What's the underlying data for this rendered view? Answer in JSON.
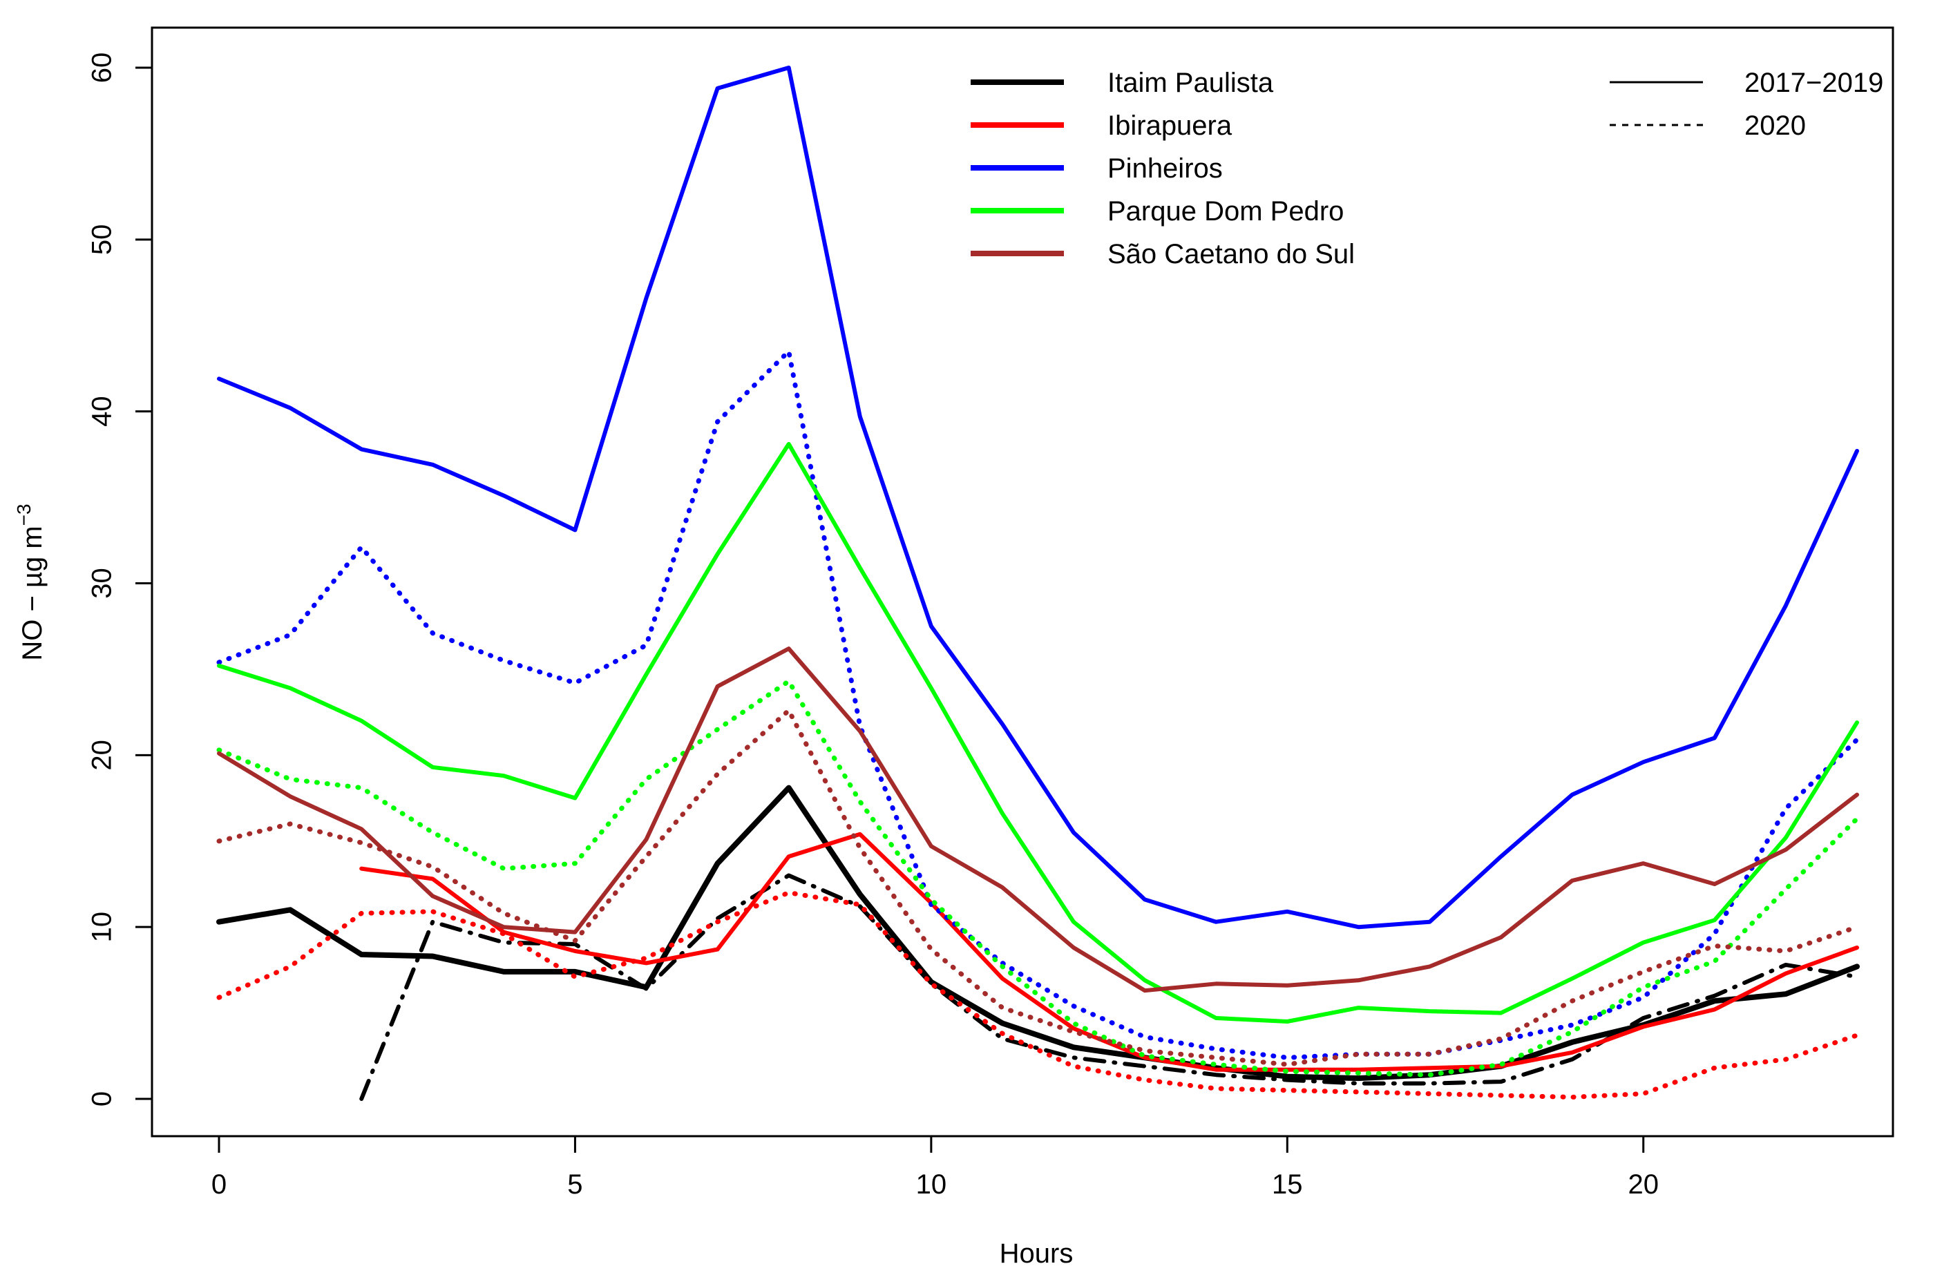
{
  "chart_data": {
    "type": "line",
    "title": "",
    "xlabel": "Hours",
    "ylabel": "NO − µg m",
    "ylabel_superscript": "−3",
    "xlim": [
      0,
      23
    ],
    "ylim": [
      0,
      60
    ],
    "x_ticks": [
      0,
      5,
      10,
      15,
      20
    ],
    "y_ticks": [
      0,
      10,
      20,
      30,
      40,
      50,
      60
    ],
    "grid": false,
    "legend_placement": "top",
    "period_legend": [
      {
        "label": "2017−2019",
        "style": "solid"
      },
      {
        "label": "2020",
        "style": "dotted"
      }
    ],
    "x": [
      0,
      1,
      2,
      3,
      4,
      5,
      6,
      7,
      8,
      9,
      10,
      11,
      12,
      13,
      14,
      15,
      16,
      17,
      18,
      19,
      20,
      21,
      22,
      23
    ],
    "series": [
      {
        "name": "Itaim Paulista",
        "period": "2017−2019",
        "color": "#000000",
        "values": [
          10.3,
          11.0,
          8.4,
          8.3,
          7.4,
          7.4,
          6.5,
          13.7,
          18.1,
          11.9,
          6.8,
          4.4,
          3.0,
          2.4,
          1.8,
          1.3,
          1.2,
          1.4,
          1.9,
          3.3,
          4.3,
          5.7,
          6.1,
          7.7
        ]
      },
      {
        "name": "Itaim Paulista",
        "period": "2020",
        "color": "#000000",
        "values": [
          null,
          null,
          0.0,
          10.3,
          9.1,
          9.0,
          6.4,
          10.5,
          13.0,
          11.2,
          6.7,
          3.5,
          2.4,
          1.9,
          1.4,
          1.1,
          0.9,
          0.9,
          1.0,
          2.3,
          4.7,
          6.0,
          7.8,
          7.1
        ]
      },
      {
        "name": "Ibirapuera",
        "period": "2017−2019",
        "color": "#ff0000",
        "values": [
          null,
          null,
          13.4,
          12.8,
          9.7,
          8.6,
          7.9,
          8.7,
          14.1,
          15.4,
          11.4,
          7.0,
          4.1,
          2.4,
          1.7,
          1.7,
          1.7,
          1.8,
          1.9,
          2.7,
          4.2,
          5.2,
          7.3,
          8.8
        ]
      },
      {
        "name": "Ibirapuera",
        "period": "2020",
        "color": "#ff0000",
        "values": [
          5.9,
          7.7,
          10.8,
          10.9,
          9.6,
          7.1,
          8.2,
          10.3,
          12.0,
          11.3,
          6.7,
          3.8,
          1.9,
          1.1,
          0.6,
          0.5,
          0.4,
          0.3,
          0.2,
          0.1,
          0.3,
          1.8,
          2.3,
          3.7
        ]
      },
      {
        "name": "Pinheiros",
        "period": "2017−2019",
        "color": "#0000ff",
        "values": [
          41.9,
          40.2,
          37.8,
          36.9,
          35.1,
          33.1,
          46.6,
          58.8,
          60.0,
          39.7,
          27.5,
          21.8,
          15.5,
          11.6,
          10.3,
          10.9,
          10.0,
          10.3,
          14.1,
          17.7,
          19.6,
          21.0,
          28.7,
          37.7
        ]
      },
      {
        "name": "Pinheiros",
        "period": "2020",
        "color": "#0000ff",
        "values": [
          25.4,
          27.0,
          32.1,
          27.1,
          25.5,
          24.2,
          26.4,
          39.4,
          43.5,
          21.7,
          11.3,
          7.9,
          5.4,
          3.6,
          2.9,
          2.4,
          2.6,
          2.6,
          3.4,
          4.3,
          5.9,
          9.6,
          16.9,
          20.9
        ]
      },
      {
        "name": "Parque Dom Pedro",
        "period": "2017−2019",
        "color": "#00ff00",
        "values": [
          25.2,
          23.9,
          22.0,
          19.3,
          18.8,
          17.5,
          24.7,
          31.7,
          38.1,
          30.9,
          23.9,
          16.6,
          10.3,
          6.9,
          4.7,
          4.5,
          5.3,
          5.1,
          5.0,
          7.0,
          9.1,
          10.4,
          15.2,
          21.9
        ]
      },
      {
        "name": "Parque Dom Pedro",
        "period": "2020",
        "color": "#00ff00",
        "values": [
          20.3,
          18.6,
          18.1,
          15.5,
          13.4,
          13.7,
          18.6,
          21.5,
          24.3,
          17.3,
          11.6,
          7.7,
          4.4,
          2.5,
          2.0,
          1.6,
          1.5,
          1.4,
          2.0,
          3.9,
          6.5,
          8.0,
          12.2,
          16.3
        ]
      },
      {
        "name": "São Caetano do Sul",
        "period": "2017−2019",
        "color": "#a52a2a",
        "values": [
          20.1,
          17.6,
          15.7,
          11.8,
          10.0,
          9.7,
          15.1,
          24.0,
          26.2,
          21.4,
          14.7,
          12.3,
          8.8,
          6.3,
          6.7,
          6.6,
          6.9,
          7.7,
          9.4,
          12.7,
          13.7,
          12.5,
          14.5,
          17.7
        ]
      },
      {
        "name": "São Caetano do Sul",
        "period": "2020",
        "color": "#a52a2a",
        "values": [
          15.0,
          16.0,
          14.9,
          13.5,
          10.8,
          9.2,
          14.1,
          18.9,
          22.6,
          14.6,
          8.7,
          5.3,
          3.9,
          2.8,
          2.4,
          2.0,
          2.6,
          2.6,
          3.5,
          5.7,
          7.4,
          8.9,
          8.6,
          10.0
        ]
      }
    ]
  }
}
